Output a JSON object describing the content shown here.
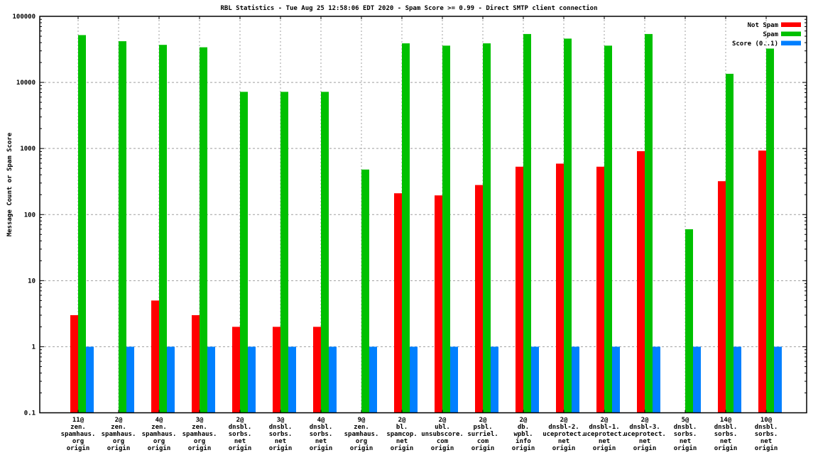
{
  "chart_data": {
    "type": "bar",
    "title": "RBL Statistics - Tue Aug 25 12:58:06 EDT 2020 - Spam Score >= 0.99 - Direct SMTP client connection",
    "ylabel": "Message Count or Spam Score",
    "xlabel": "",
    "y_scale": "log",
    "ylim": [
      0.1,
      100000
    ],
    "y_ticks": [
      "100000",
      "10000",
      "1000",
      "100",
      "10",
      "1",
      "0.1"
    ],
    "grid": true,
    "legend_position": "top-right-inside",
    "categories": [
      [
        "11@",
        "zen.",
        "spamhaus.",
        "org",
        "origin"
      ],
      [
        "2@",
        "zen.",
        "spamhaus.",
        "org",
        "origin"
      ],
      [
        "4@",
        "zen.",
        "spamhaus.",
        "org",
        "origin"
      ],
      [
        "3@",
        "zen.",
        "spamhaus.",
        "org",
        "origin"
      ],
      [
        "2@",
        "dnsbl.",
        "sorbs.",
        "net",
        "origin"
      ],
      [
        "3@",
        "dnsbl.",
        "sorbs.",
        "net",
        "origin"
      ],
      [
        "4@",
        "dnsbl.",
        "sorbs.",
        "net",
        "origin"
      ],
      [
        "9@",
        "zen.",
        "spamhaus.",
        "org",
        "origin"
      ],
      [
        "2@",
        "bl.",
        "spamcop.",
        "net",
        "origin"
      ],
      [
        "2@",
        "ubl.",
        "unsubscore.",
        "com",
        "origin"
      ],
      [
        "2@",
        "psbl.",
        "surriel.",
        "com",
        "origin"
      ],
      [
        "2@",
        "db.",
        "wpbl.",
        "info",
        "origin"
      ],
      [
        "2@",
        "dnsbl-2.",
        "uceprotect.",
        "net",
        "origin"
      ],
      [
        "2@",
        "dnsbl-1.",
        "uceprotect.",
        "net",
        "origin"
      ],
      [
        "2@",
        "dnsbl-3.",
        "uceprotect.",
        "net",
        "origin"
      ],
      [
        "5@",
        "dnsbl.",
        "sorbs.",
        "net",
        "origin"
      ],
      [
        "14@",
        "dnsbl.",
        "sorbs.",
        "net",
        "origin"
      ],
      [
        "10@",
        "dnsbl.",
        "sorbs.",
        "net",
        "origin"
      ]
    ],
    "series": [
      {
        "name": "Not Spam",
        "color": "#ff0000",
        "values": [
          3,
          0,
          5,
          3,
          2,
          2,
          2,
          0,
          210,
          195,
          280,
          530,
          590,
          530,
          910,
          0,
          320,
          930
        ]
      },
      {
        "name": "Spam",
        "color": "#00c000",
        "values": [
          52000,
          42000,
          37000,
          34000,
          7200,
          7200,
          7200,
          480,
          39000,
          36000,
          39000,
          54000,
          46000,
          36000,
          54000,
          60,
          13500,
          32500
        ]
      },
      {
        "name": "Score (0..1)",
        "color": "#0080ff",
        "values": [
          1,
          1,
          1,
          1,
          1,
          1,
          1,
          1,
          1,
          1,
          1,
          1,
          1,
          1,
          1,
          1,
          1,
          1
        ]
      }
    ],
    "colors": {
      "grid": "#9f9f9f",
      "border": "#000000",
      "background": "#ffffff"
    }
  }
}
